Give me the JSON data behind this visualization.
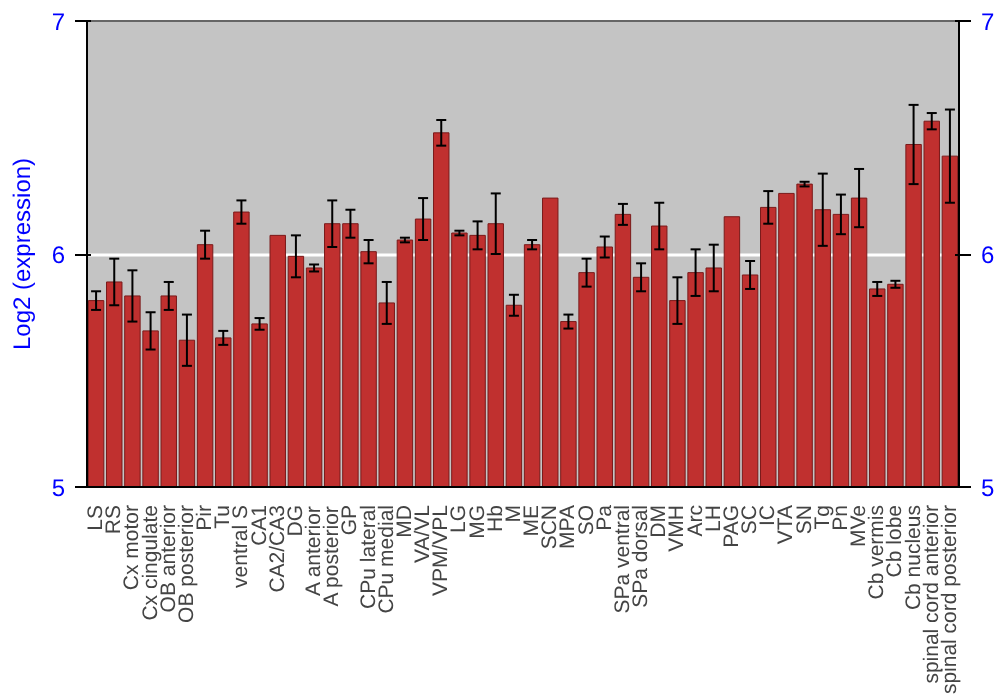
{
  "chart_data": {
    "type": "bar",
    "ylabel": "Log2 (expression)",
    "categories": [
      "LS",
      "RS",
      "Cx motor",
      "Cx cingulate",
      "OB anterior",
      "OB posterior",
      "Pir",
      "Tu",
      "ventral S",
      "CA1",
      "CA2/CA3",
      "DG",
      "A anterior",
      "A posterior",
      "GP",
      "CPu lateral",
      "CPu medial",
      "MD",
      "VA/VL",
      "VPM/VPL",
      "LG",
      "MG",
      "Hb",
      "M",
      "ME",
      "SCN",
      "MPA",
      "SO",
      "Pa",
      "SPa ventral",
      "SPa dorsal",
      "DM",
      "VMH",
      "Arc",
      "LH",
      "PAG",
      "SC",
      "IC",
      "VTA",
      "SN",
      "Tg",
      "Pn",
      "MVe",
      "Cb vermis",
      "Cb lobe",
      "Cb nucleus",
      "spinal cord anterior",
      "spinal cord posterior"
    ],
    "values": [
      5.8,
      5.88,
      5.82,
      5.67,
      5.82,
      5.63,
      6.04,
      5.64,
      6.18,
      5.7,
      6.08,
      5.99,
      5.94,
      6.13,
      6.13,
      6.01,
      5.79,
      6.06,
      6.15,
      6.52,
      6.09,
      6.08,
      6.13,
      5.78,
      6.04,
      6.24,
      5.71,
      5.92,
      6.03,
      6.17,
      5.9,
      6.12,
      5.8,
      5.92,
      5.94,
      6.16,
      5.91,
      6.2,
      6.26,
      6.3,
      6.19,
      6.17,
      6.24,
      5.85,
      5.87,
      6.47,
      6.57,
      6.42
    ],
    "errors": [
      0.04,
      0.1,
      0.11,
      0.08,
      0.06,
      0.11,
      0.06,
      0.03,
      0.05,
      0.025,
      null,
      0.09,
      0.015,
      0.1,
      0.06,
      0.05,
      0.09,
      0.01,
      0.09,
      0.055,
      0.01,
      0.06,
      0.13,
      0.045,
      0.02,
      null,
      0.03,
      0.06,
      0.045,
      0.045,
      0.06,
      0.1,
      0.1,
      0.1,
      0.1,
      null,
      0.06,
      0.07,
      null,
      0.01,
      0.155,
      0.085,
      0.125,
      0.03,
      0.015,
      0.17,
      0.035,
      0.2
    ],
    "color": "#c0302f",
    "ylim": [
      5,
      7
    ],
    "yticks": [
      5,
      6,
      7
    ],
    "y2lim": [
      5,
      7
    ],
    "y2ticks": [
      5,
      6,
      7
    ],
    "grid": "y"
  }
}
